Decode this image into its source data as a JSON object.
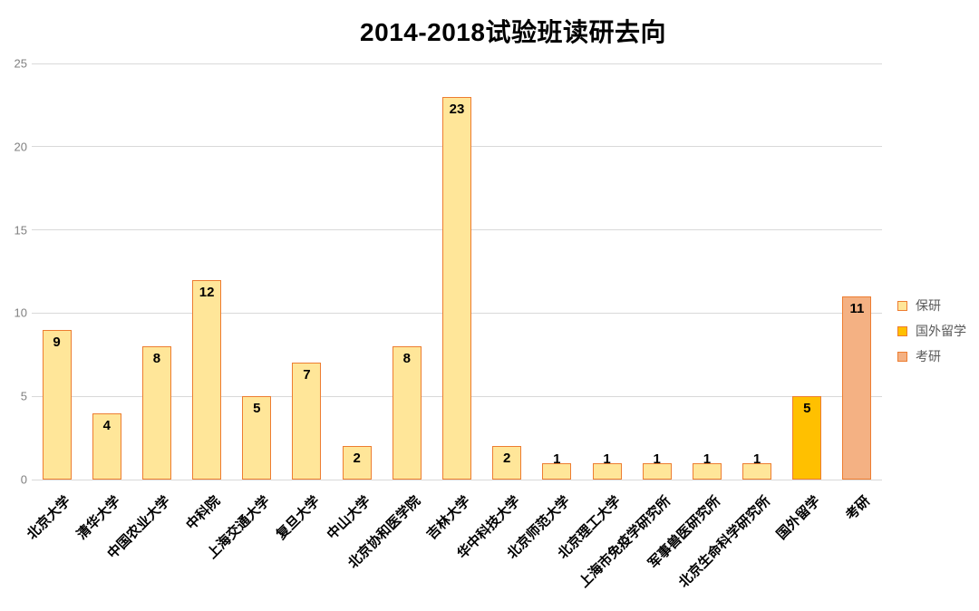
{
  "chart_data": {
    "type": "bar",
    "title": "2014-2018试验班读研去向",
    "categories": [
      "北京大学",
      "清华大学",
      "中国农业大学",
      "中科院",
      "上海交通大学",
      "复旦大学",
      "中山大学",
      "北京协和医学院",
      "吉林大学",
      "华中科技大学",
      "北京师范大学",
      "北京理工大学",
      "上海市免疫学研究所",
      "军事兽医研究所",
      "北京生命科学研究所",
      "国外留学",
      "考研"
    ],
    "values": [
      9,
      4,
      8,
      12,
      5,
      7,
      2,
      8,
      23,
      2,
      1,
      1,
      1,
      1,
      1,
      5,
      11
    ],
    "bar_series": [
      "保研",
      "保研",
      "保研",
      "保研",
      "保研",
      "保研",
      "保研",
      "保研",
      "保研",
      "保研",
      "保研",
      "保研",
      "保研",
      "保研",
      "保研",
      "国外留学",
      "考研"
    ],
    "xlabel": "",
    "ylabel": "",
    "ylim": [
      0,
      25
    ],
    "yticks": [
      0,
      5,
      10,
      15,
      20,
      25
    ],
    "grid": true,
    "data_labels": true,
    "legend": {
      "position": "right",
      "items": [
        {
          "label": "保研",
          "fill": "#FFE699"
        },
        {
          "label": "国外留学",
          "fill": "#FFC000"
        },
        {
          "label": "考研",
          "fill": "#F4B183"
        }
      ]
    },
    "colors": {
      "bar_border": "#ED7D31",
      "gridline": "#D9D9D9",
      "axis_text": "#808080",
      "legend_text": "#595959",
      "data_label_text": "#000000",
      "title_text": "#000000"
    }
  }
}
